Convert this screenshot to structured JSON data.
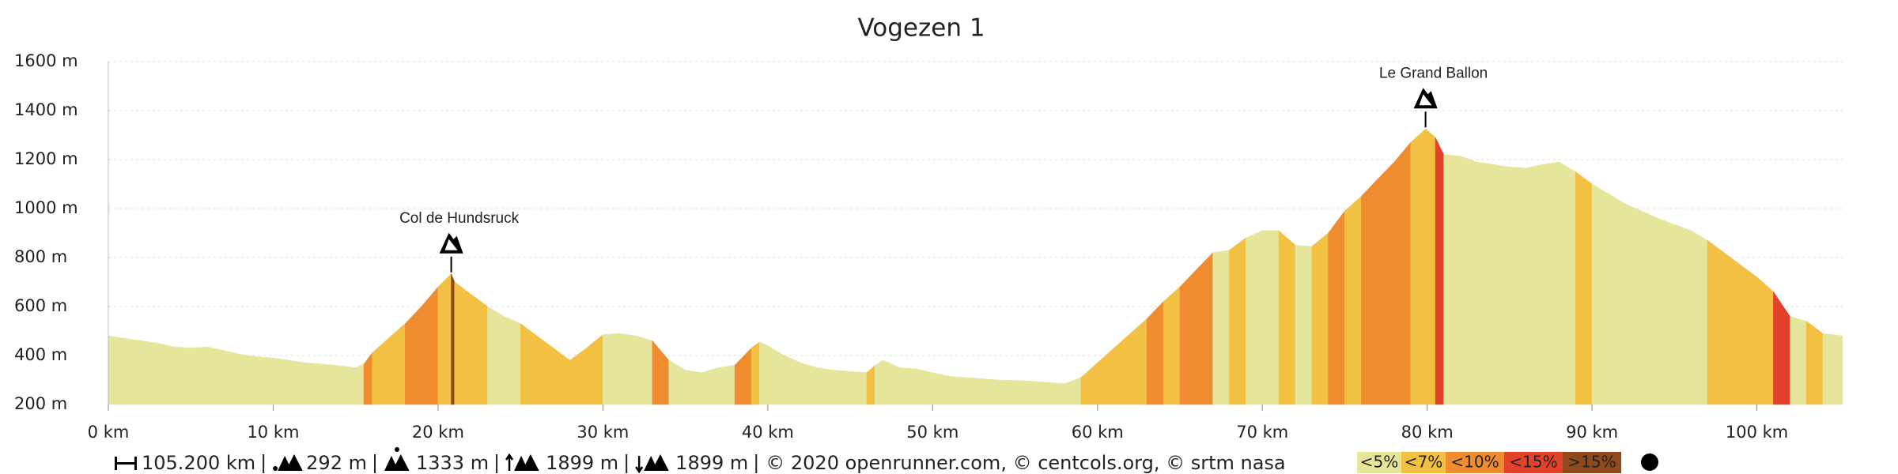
{
  "chart_data": {
    "type": "area",
    "title": "Vogezen 1",
    "series": [
      {
        "name": "elevation",
        "x": [
          0,
          1,
          2,
          3,
          4,
          5,
          6,
          7,
          8,
          9,
          10,
          11,
          12,
          13,
          14,
          15,
          15.5,
          16,
          17,
          18,
          19,
          20,
          20.8,
          21,
          22,
          23,
          24,
          25,
          26,
          27,
          28,
          29,
          30,
          31,
          32,
          33,
          34,
          35,
          36,
          37,
          38,
          39,
          39.5,
          40,
          41,
          42,
          43,
          44,
          45,
          46,
          46.5,
          47,
          48,
          49,
          50,
          51,
          52,
          53,
          54,
          55,
          56,
          57,
          58,
          59,
          60,
          61,
          62,
          63,
          64,
          65,
          66,
          67,
          68,
          69,
          70,
          71,
          72,
          73,
          74,
          75,
          76,
          77,
          78,
          79,
          79.9,
          80.5,
          81,
          82,
          83,
          84,
          85,
          86,
          87,
          88,
          89,
          90,
          91,
          92,
          93,
          94,
          95,
          96,
          97,
          98,
          99,
          100,
          101,
          102,
          103,
          104,
          105.2
        ],
        "values": [
          480,
          470,
          460,
          450,
          435,
          430,
          435,
          420,
          405,
          395,
          390,
          380,
          370,
          365,
          358,
          350,
          365,
          410,
          470,
          530,
          600,
          680,
          733,
          700,
          650,
          600,
          560,
          530,
          480,
          430,
          380,
          430,
          485,
          490,
          480,
          460,
          380,
          340,
          330,
          350,
          360,
          430,
          455,
          440,
          400,
          370,
          350,
          340,
          335,
          330,
          360,
          380,
          350,
          345,
          330,
          315,
          310,
          305,
          300,
          298,
          295,
          290,
          285,
          310,
          370,
          430,
          490,
          550,
          620,
          680,
          750,
          820,
          830,
          880,
          910,
          910,
          850,
          845,
          900,
          990,
          1050,
          1120,
          1190,
          1270,
          1325,
          1290,
          1220,
          1215,
          1190,
          1180,
          1170,
          1165,
          1180,
          1190,
          1150,
          1100,
          1060,
          1020,
          990,
          960,
          935,
          910,
          870,
          820,
          770,
          720,
          660,
          560,
          540,
          490,
          480
        ]
      }
    ],
    "xlim": [
      0,
      105.2
    ],
    "ylim": [
      200,
      1600
    ],
    "xticks": [
      {
        "value": 0,
        "label": "0 km"
      },
      {
        "value": 10,
        "label": "10 km"
      },
      {
        "value": 20,
        "label": "20 km"
      },
      {
        "value": 30,
        "label": "30 km"
      },
      {
        "value": 40,
        "label": "40 km"
      },
      {
        "value": 50,
        "label": "50 km"
      },
      {
        "value": 60,
        "label": "60 km"
      },
      {
        "value": 70,
        "label": "70 km"
      },
      {
        "value": 80,
        "label": "80 km"
      },
      {
        "value": 90,
        "label": "90 km"
      },
      {
        "value": 100,
        "label": "100 km"
      }
    ],
    "yticks": [
      {
        "value": 200,
        "label": "200 m"
      },
      {
        "value": 400,
        "label": "400 m"
      },
      {
        "value": 600,
        "label": "600 m"
      },
      {
        "value": 800,
        "label": "800 m"
      },
      {
        "value": 1000,
        "label": "1000 m"
      },
      {
        "value": 1200,
        "label": "1200 m"
      },
      {
        "value": 1400,
        "label": "1400 m"
      },
      {
        "value": 1600,
        "label": "1600 m"
      }
    ],
    "grid": true,
    "annotations": [
      {
        "label": "Col de Hundsruck",
        "x": 20.8,
        "y": 733
      },
      {
        "label": "Le Grand Ballon",
        "x": 79.9,
        "y": 1325
      }
    ],
    "legend": [
      {
        "label": "<5%",
        "color": "#e5e59b"
      },
      {
        "label": "<7%",
        "color": "#f2c043"
      },
      {
        "label": "<10%",
        "color": "#ef8c2f"
      },
      {
        "label": "<15%",
        "color": "#e2412a"
      },
      {
        "label": ">15%",
        "color": "#8e4a1c"
      }
    ],
    "stats": [
      "105.200 km",
      "292 m",
      "1333 m",
      "1899 m",
      "1899 m"
    ],
    "credits": "© 2020 openrunner.com, © centcols.org, © srtm nasa"
  }
}
